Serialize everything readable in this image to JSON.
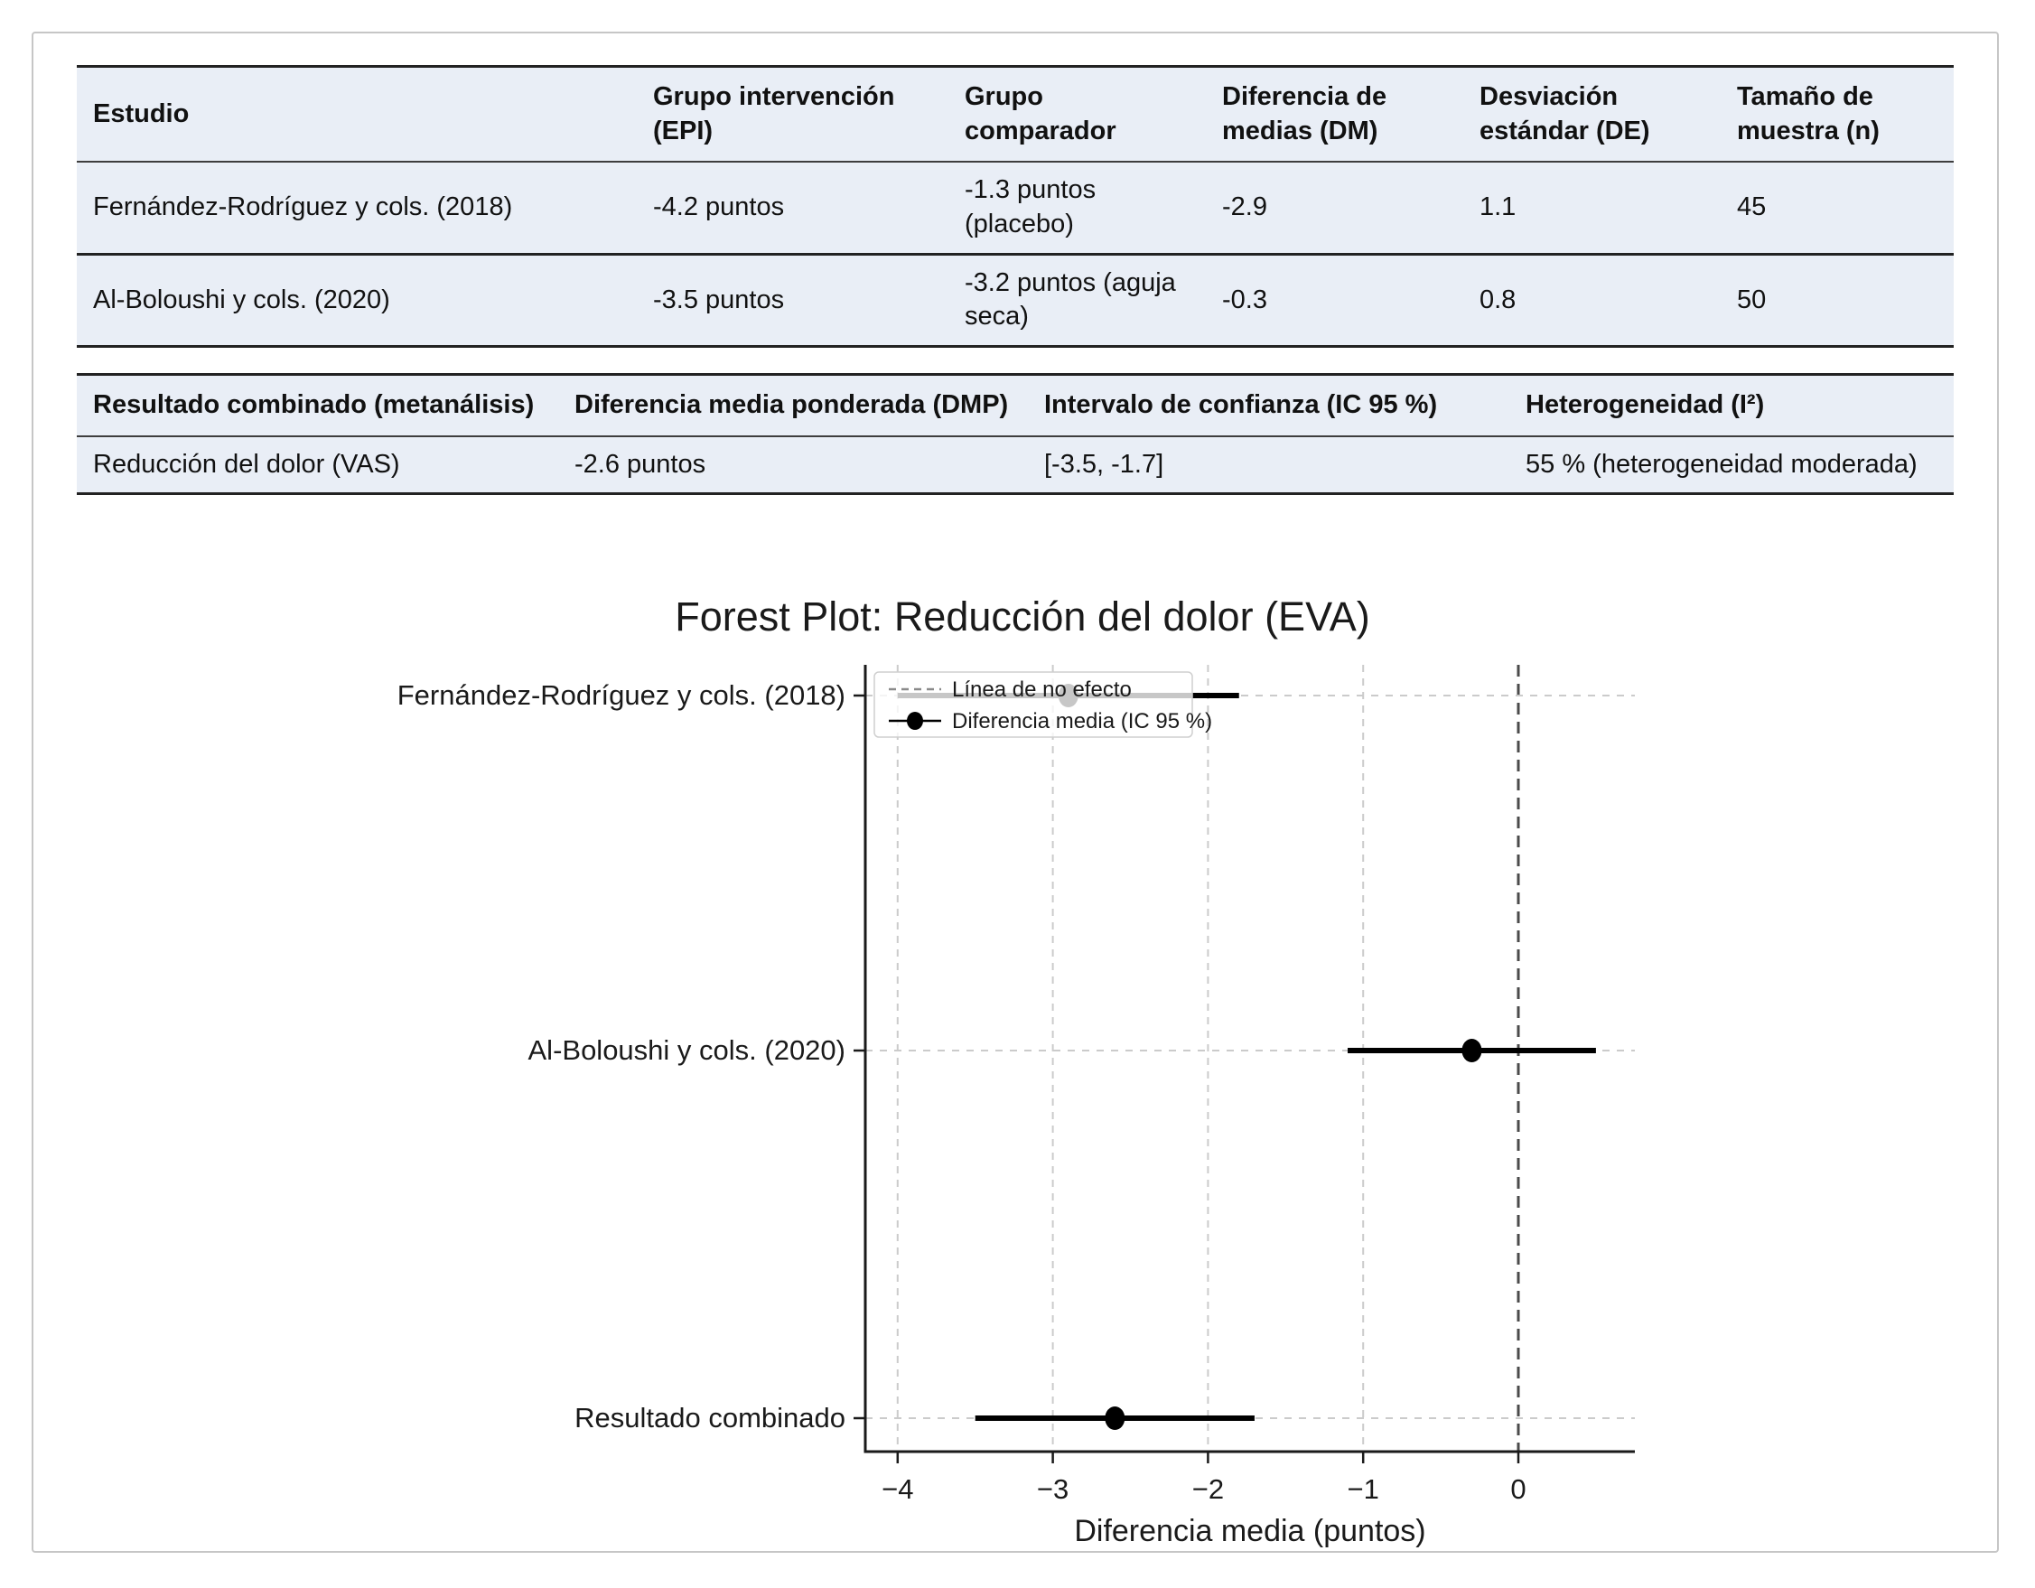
{
  "page": {
    "background": "#ffffff",
    "border_color": "#c6c6c6",
    "table_background": "#e9eef6"
  },
  "study_table": {
    "columns": [
      "Estudio",
      "Grupo intervención (EPI)",
      "Grupo comparador",
      "Diferencia de medias (DM)",
      "Desviación estándar (DE)",
      "Tamaño de muestra (n)"
    ],
    "rows": [
      [
        "Fernández-Rodríguez y cols. (2018)",
        "-4.2 puntos",
        "-1.3 puntos (placebo)",
        "-2.9",
        "1.1",
        "45"
      ],
      [
        "Al-Boloushi y cols. (2020)",
        "-3.5 puntos",
        "-3.2 puntos (aguja seca)",
        "-0.3",
        "0.8",
        "50"
      ]
    ]
  },
  "meta_table": {
    "columns": [
      "Resultado combinado (metanálisis)",
      "Diferencia media ponderada (DMP)",
      "Intervalo de confianza (IC 95 %)",
      "Heterogeneidad (I²)"
    ],
    "rows": [
      [
        "Reducción del dolor (VAS)",
        "-2.6 puntos",
        "[-3.5, -1.7]",
        "55 % (heterogeneidad moderada)"
      ]
    ]
  },
  "chart_colors": {
    "spine": "#1a1a1a",
    "text": "#1a1a1a",
    "gridline": "#cbcbcb",
    "no_effect_line": "#4b4b4b",
    "marker": "#000000",
    "legend_bg": "rgba(255,255,255,0.78)",
    "legend_border": "#cfcfcf",
    "legend_dash": "#8a8a8a"
  },
  "chart_data": {
    "type": "forest",
    "title": "Forest Plot: Reducción del dolor (EVA)",
    "xlabel": "Diferencia media (puntos)",
    "xlim": [
      -4.2,
      0.75
    ],
    "no_effect_x": 0,
    "grid": true,
    "legend_position": "upper left",
    "legend": [
      {
        "label": "Línea de no efecto",
        "style": "dashed-gray-line"
      },
      {
        "label": "Diferencia media (IC 95 %)",
        "style": "black-point-with-ci"
      }
    ],
    "x_ticks": [
      {
        "value": -4,
        "label": "−4"
      },
      {
        "value": -3,
        "label": "−3"
      },
      {
        "value": -2,
        "label": "−2"
      },
      {
        "value": -1,
        "label": "−1"
      },
      {
        "value": 0,
        "label": "0"
      }
    ],
    "rows": [
      {
        "label": "Fernández-Rodríguez y cols. (2018)",
        "mean": -2.9,
        "ci_low": -4.0,
        "ci_high": -1.8
      },
      {
        "label": "Al-Boloushi y cols. (2020)",
        "mean": -0.3,
        "ci_low": -1.1,
        "ci_high": 0.5
      },
      {
        "label": "Resultado combinado",
        "mean": -2.6,
        "ci_low": -3.5,
        "ci_high": -1.7
      }
    ]
  }
}
